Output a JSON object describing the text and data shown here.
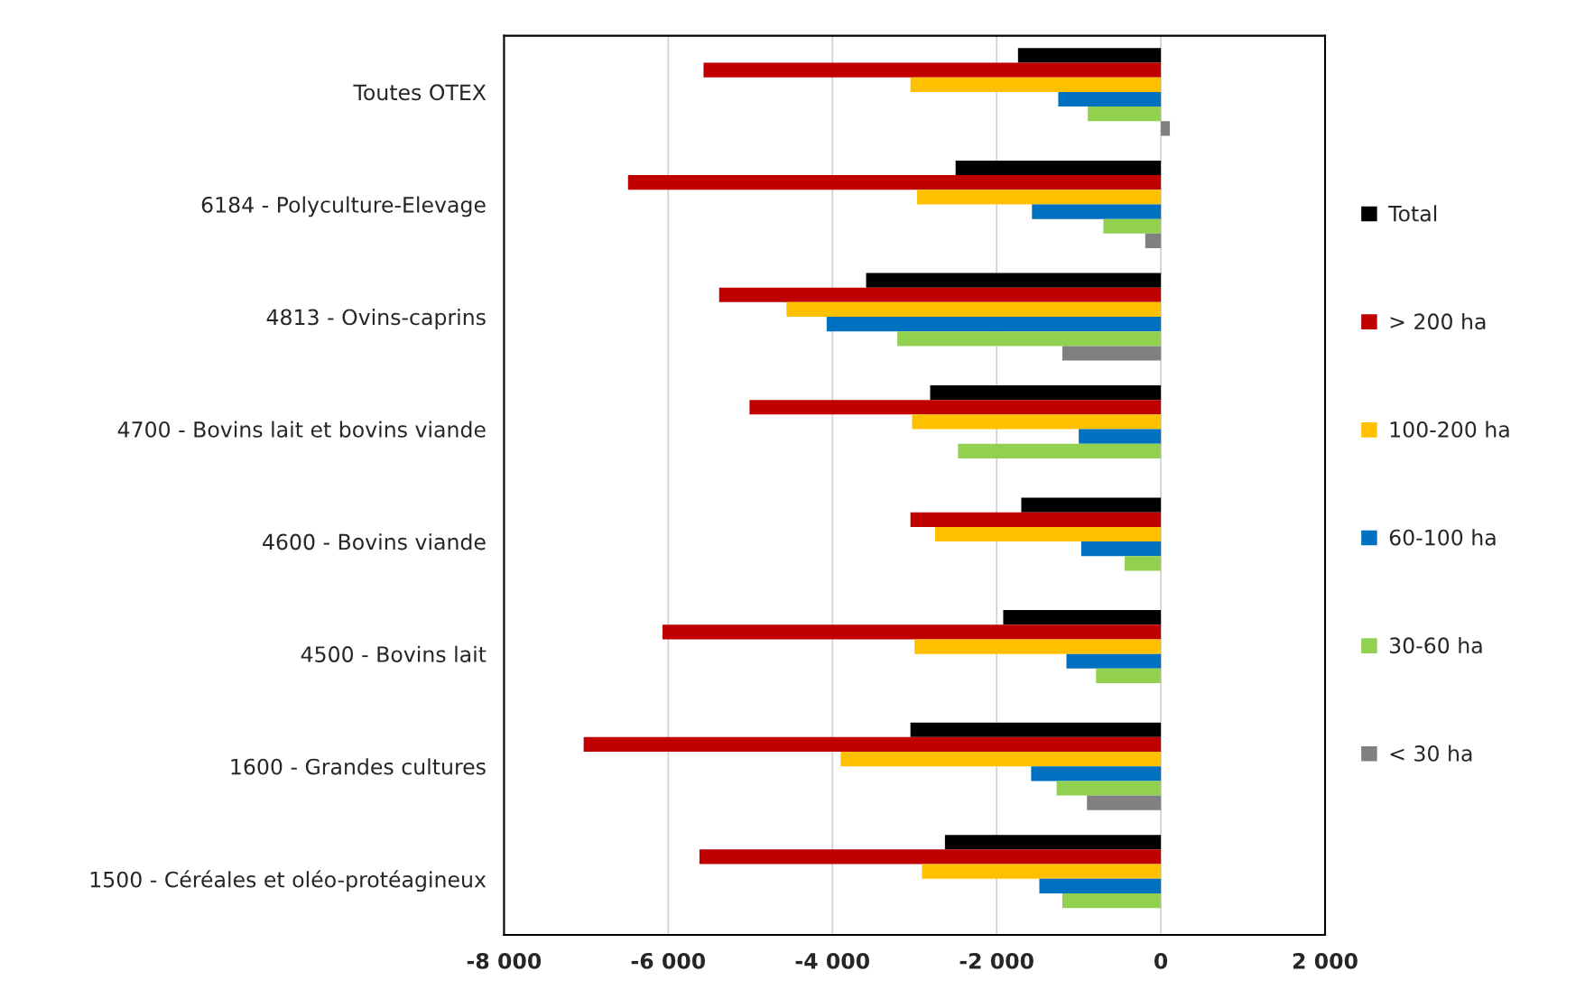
{
  "chart_data": {
    "type": "bar",
    "orientation": "horizontal",
    "categories": [
      "Toutes OTEX",
      "6184 - Polyculture-Elevage",
      "4813 - Ovins-caprins",
      "4700 - Bovins lait et bovins viande",
      "4600 - Bovins viande",
      "4500 - Bovins lait",
      "1600 - Grandes cultures",
      "1500 - Céréales et oléo-protéagineux"
    ],
    "series": [
      {
        "name": "Total",
        "color": "#000000",
        "values": [
          -1740,
          -2500,
          -3590,
          -2810,
          -1700,
          -1920,
          -3050,
          -2630
        ]
      },
      {
        "name": "> 200 ha",
        "color": "#c00000",
        "values": [
          -5570,
          -6490,
          -5380,
          -5010,
          -3050,
          -6070,
          -7030,
          -5620
        ]
      },
      {
        "name": "100-200 ha",
        "color": "#ffc000",
        "values": [
          -3050,
          -2970,
          -4560,
          -3030,
          -2750,
          -3000,
          -3900,
          -2910
        ]
      },
      {
        "name": "60-100 ha",
        "color": "#0070c0",
        "values": [
          -1250,
          -1570,
          -4070,
          -1000,
          -970,
          -1150,
          -1580,
          -1480
        ]
      },
      {
        "name": "30-60 ha",
        "color": "#92d050",
        "values": [
          -890,
          -700,
          -3210,
          -2470,
          -440,
          -790,
          -1270,
          -1200
        ]
      },
      {
        "name": "< 30 ha",
        "color": "#808080",
        "values": [
          110,
          -190,
          -1200,
          null,
          null,
          null,
          -900,
          null
        ]
      }
    ],
    "xlim": [
      -8000,
      2000
    ],
    "xticks": [
      {
        "value": -8000,
        "label": "-8 000"
      },
      {
        "value": -6000,
        "label": "-6 000"
      },
      {
        "value": -4000,
        "label": "-4 000"
      },
      {
        "value": -2000,
        "label": "-2 000"
      },
      0,
      {
        "value": 2000,
        "label": "2 000"
      }
    ],
    "grid": "x",
    "legend": "right"
  }
}
